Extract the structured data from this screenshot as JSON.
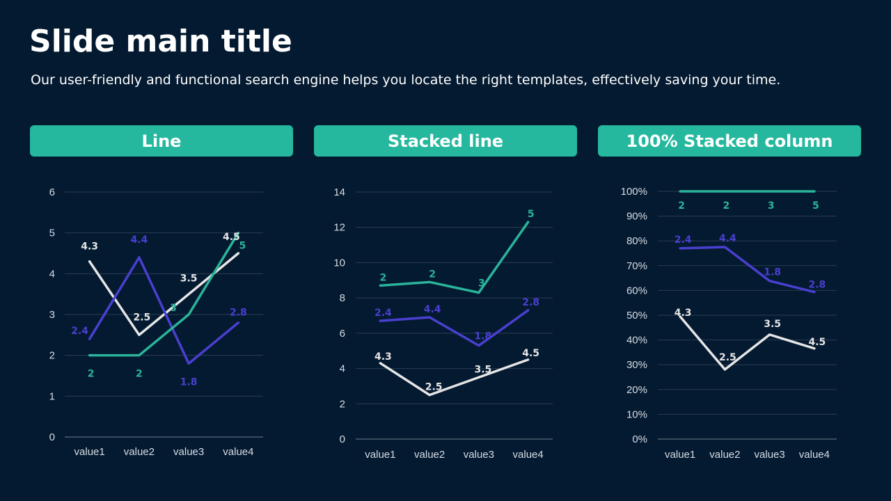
{
  "slide": {
    "title": "Slide main title",
    "subtitle": "Our user-friendly and functional search engine helps you locate the right templates, effectively saving your time."
  },
  "colors": {
    "background": "#041a31",
    "header": "#26b89e",
    "series_white": "#e6e6e6",
    "series_blue": "#4a3fd0",
    "series_teal": "#2bb49a",
    "grid": "#2a3d52"
  },
  "chart_data": [
    {
      "type": "line",
      "title": "Line",
      "categories": [
        "value1",
        "value2",
        "value3",
        "value4"
      ],
      "series": [
        {
          "values": [
            4.3,
            2.5,
            3.5,
            4.5
          ],
          "color": "#e6e6e6"
        },
        {
          "values": [
            2.4,
            4.4,
            1.8,
            2.8
          ],
          "color": "#4a3fd0"
        },
        {
          "values": [
            2,
            2,
            3,
            5
          ],
          "color": "#2bb49a"
        }
      ],
      "ylim": [
        0,
        6
      ],
      "yticks": [
        "0",
        "1",
        "2",
        "3",
        "4",
        "5",
        "6"
      ],
      "grid": true
    },
    {
      "type": "line",
      "subtype": "stacked",
      "title": "Stacked line",
      "categories": [
        "value1",
        "value2",
        "value3",
        "value4"
      ],
      "series": [
        {
          "values": [
            4.3,
            2.5,
            3.5,
            4.5
          ],
          "color": "#e6e6e6"
        },
        {
          "values": [
            2.4,
            4.4,
            1.8,
            2.8
          ],
          "color": "#4a3fd0"
        },
        {
          "values": [
            2,
            2,
            3,
            5
          ],
          "color": "#2bb49a"
        }
      ],
      "ylim": [
        0,
        14
      ],
      "yticks": [
        "0",
        "2",
        "4",
        "6",
        "8",
        "10",
        "12",
        "14"
      ],
      "grid": true
    },
    {
      "type": "line",
      "subtype": "100% stacked",
      "title": "100% Stacked column",
      "categories": [
        "value1",
        "value2",
        "value3",
        "value4"
      ],
      "series": [
        {
          "values": [
            4.3,
            2.5,
            3.5,
            4.5
          ],
          "color": "#e6e6e6"
        },
        {
          "values": [
            2.4,
            4.4,
            1.8,
            2.8
          ],
          "color": "#4a3fd0"
        },
        {
          "values": [
            2,
            2,
            3,
            5
          ],
          "color": "#2bb49a"
        }
      ],
      "ylim": [
        0,
        100
      ],
      "yticks": [
        "0%",
        "10%",
        "20%",
        "30%",
        "40%",
        "50%",
        "60%",
        "70%",
        "80%",
        "90%",
        "100%"
      ],
      "grid": true
    }
  ]
}
